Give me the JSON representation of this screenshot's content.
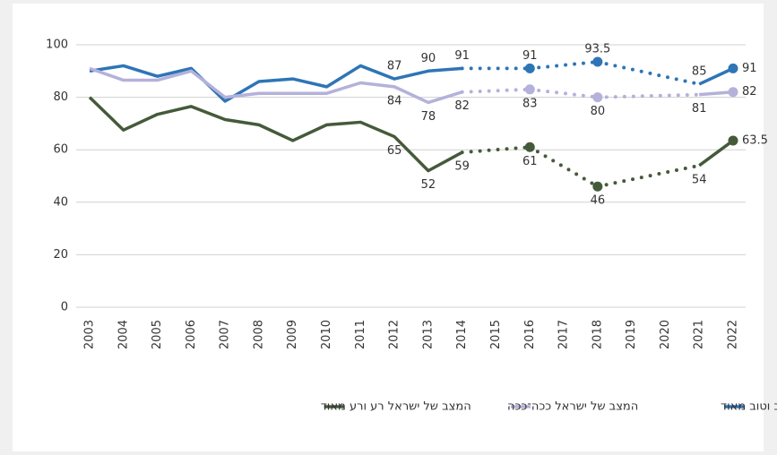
{
  "chart_data": {
    "type": "line",
    "categories": [
      "2003",
      "2004",
      "2005",
      "2006",
      "2007",
      "2008",
      "2009",
      "2010",
      "2011",
      "2012",
      "2013",
      "2014",
      "2015",
      "2016",
      "2017",
      "2018",
      "2019",
      "2020",
      "2021",
      "2022"
    ],
    "ylim": [
      0,
      100
    ],
    "yticks": [
      0,
      20,
      40,
      60,
      80,
      100
    ],
    "grid": true,
    "marker_categories": [
      "2016",
      "2018",
      "2022"
    ],
    "series": [
      {
        "name": "המצב של ישראל טוב וטוב מאוד",
        "color": "#2e75b6",
        "values": [
          90,
          92,
          88,
          91,
          78.5,
          86,
          87,
          84,
          92,
          87,
          90,
          91,
          null,
          91,
          null,
          93.5,
          null,
          null,
          85,
          91
        ],
        "value_labels": [
          null,
          null,
          null,
          null,
          null,
          null,
          null,
          null,
          null,
          "87",
          "90",
          "91",
          null,
          "91",
          null,
          "93.5",
          null,
          null,
          "85",
          "91"
        ]
      },
      {
        "name": "המצב של ישראל ככה־ככה",
        "color": "#b4b1da",
        "values": [
          91,
          86.5,
          86.5,
          90,
          80,
          81.5,
          81.5,
          81.5,
          85.5,
          84,
          78,
          82,
          null,
          83,
          null,
          80,
          null,
          null,
          81,
          82
        ],
        "value_labels": [
          null,
          null,
          null,
          null,
          null,
          null,
          null,
          null,
          null,
          "84",
          "78",
          "82",
          null,
          "83",
          null,
          "80",
          null,
          null,
          "81",
          "82"
        ]
      },
      {
        "name": "המצב של ישראל רע ורע מאוד",
        "color": "#455a3a",
        "values": [
          80,
          67.5,
          73.5,
          76.5,
          71.5,
          69.5,
          63.5,
          69.5,
          70.5,
          65,
          52,
          59,
          null,
          61,
          null,
          46,
          null,
          null,
          54,
          63.5
        ],
        "value_labels": [
          null,
          null,
          null,
          null,
          null,
          null,
          null,
          null,
          null,
          "65",
          "52",
          "59",
          null,
          "61",
          null,
          "46",
          null,
          null,
          "54",
          "63.5"
        ]
      }
    ]
  }
}
